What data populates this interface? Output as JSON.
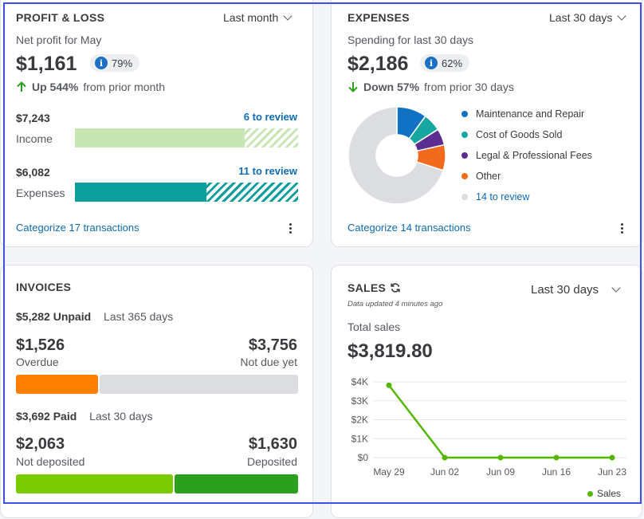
{
  "profit_loss": {
    "title": "PROFIT & LOSS",
    "period": "Last month",
    "subtitle": "Net profit for May",
    "amount": "$1,161",
    "badge": "79%",
    "trend_pct": "Up 544%",
    "trend_rest": "from prior month",
    "income_amount": "$7,243",
    "income_label": "Income",
    "income_review": "6 to review",
    "income_fraction": 0.76,
    "expenses_amount": "$6,082",
    "expenses_label": "Expenses",
    "expenses_review": "11 to review",
    "expenses_fraction": 0.59,
    "categorize": "Categorize 17 transactions"
  },
  "expenses": {
    "title": "EXPENSES",
    "period": "Last 30 days",
    "subtitle": "Spending for last 30 days",
    "amount": "$2,186",
    "badge": "62%",
    "trend_pct": "Down 57%",
    "trend_rest": "from prior 30 days",
    "legend": [
      {
        "label": "Maintenance and Repair",
        "color": "#1172c4"
      },
      {
        "label": "Cost of Goods Sold",
        "color": "#17a6a0"
      },
      {
        "label": "Legal & Professional Fees",
        "color": "#5b2d91"
      },
      {
        "label": "Other",
        "color": "#f26b1d"
      },
      {
        "label": "14 to review",
        "color": "#dcdde1"
      }
    ],
    "donut_fractions": [
      0.1,
      0.06,
      0.055,
      0.085,
      0.7
    ],
    "categorize": "Categorize 14 transactions"
  },
  "invoices": {
    "title": "INVOICES",
    "unpaid_amount": "$5,282 Unpaid",
    "unpaid_period": "Last 365 days",
    "overdue_amount": "$1,526",
    "overdue_label": "Overdue",
    "notdue_amount": "$3,756",
    "notdue_label": "Not due yet",
    "paid_amount": "$3,692 Paid",
    "paid_period": "Last 30 days",
    "notdeposited_amount": "$2,063",
    "notdeposited_label": "Not deposited",
    "deposited_amount": "$1,630",
    "deposited_label": "Deposited",
    "colors": {
      "overdue": "#ff8000",
      "notdue": "#dcdde1",
      "notdeposited": "#7acb00",
      "deposited": "#2ca01c"
    }
  },
  "sales": {
    "title": "SALES",
    "period": "Last 30 days",
    "updated": "Data updated 4 minutes ago",
    "total_label": "Total sales",
    "total_amount": "$3,819.80",
    "legend": "Sales"
  },
  "chart_data": {
    "type": "line",
    "x": [
      "May 29",
      "Jun 02",
      "Jun 09",
      "Jun 16",
      "Jun 23"
    ],
    "series": [
      {
        "name": "Sales",
        "values": [
          3819.8,
          0,
          0,
          0,
          0
        ],
        "color": "#53b700"
      }
    ],
    "y_ticks": [
      "$0",
      "$1K",
      "$2K",
      "$3K",
      "$4K"
    ],
    "ylim": [
      0,
      4000
    ],
    "grid": true,
    "legend": "bottom-right"
  }
}
